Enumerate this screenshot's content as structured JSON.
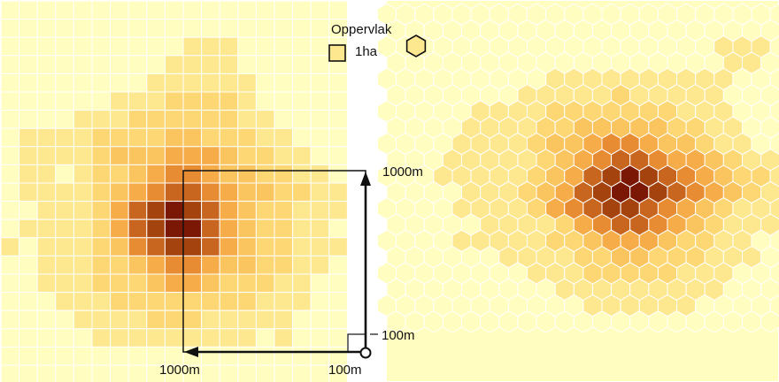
{
  "legend": {
    "title": "Oppervlak",
    "square_area": "1ha",
    "square_icon": "square-cell-icon",
    "hex_icon": "hexagon-cell-icon"
  },
  "scale": {
    "horizontal_long": "1000m",
    "horizontal_short": "100m",
    "vertical_long": "1000m",
    "vertical_short": "100m"
  },
  "colors": {
    "ramp": [
      "#fffdc0",
      "#fde890",
      "#fcd773",
      "#fac45f",
      "#f6ac48",
      "#e88c33",
      "#c8651f",
      "#a5430f",
      "#7a1705"
    ],
    "grid_line": "#ffffff",
    "arrow": "#111111"
  },
  "square_grid": {
    "rows": [
      "0000000000000000000",
      "0000000000000000000",
      "0000000000111000000",
      "0000000001111000000",
      "0000000011111100000",
      "0000001112222100000",
      "0000111222222110000",
      "0111122223322211000",
      "0111123334443221100",
      "0110122345543322110",
      "0111123456654332211",
      "0011124678764322111",
      "0111124678864322110",
      "1011123567764322111",
      "0011122345543322110",
      "0011122234432221100",
      "0001112222222211100",
      "0000111122211111000",
      "0000011111111101000",
      "0000000000000000000",
      "0000000000000000000"
    ]
  },
  "hex_grid": {
    "rows": [
      "0000000000000000000000",
      "0000000000000000000000",
      "0000000000000000001110",
      "0000000000000000001100",
      "0000000001111111111000",
      "0000000111112111110000",
      "0000011112222222111000",
      "0000111122333332211000",
      "0000111123345543321100",
      "0001111123456654432111",
      "0001111123467876543221",
      "0000111234678876543211",
      "0000111124567765432111",
      "0000011112456654321110",
      "0000111112234443221100",
      "0000001111223322211100",
      "0000000011122222111000",
      "0000000001111111110000",
      "0000000000011111100000",
      "0000000000000000000000"
    ]
  }
}
